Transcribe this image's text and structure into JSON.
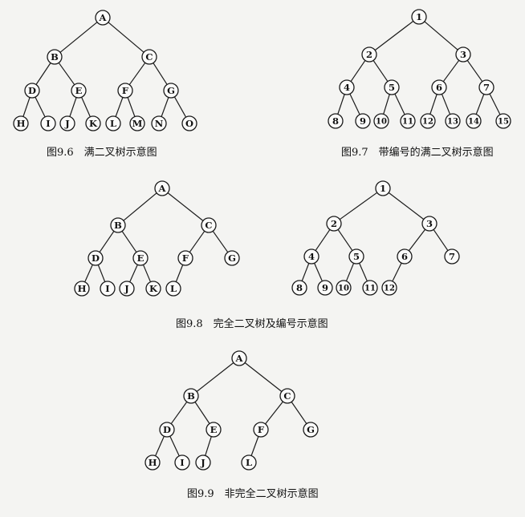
{
  "figures": [
    {
      "id": "fig-9-6",
      "caption": "图9.6　满二叉树示意图",
      "nodes": [
        {
          "id": "A",
          "label": "A",
          "parent": null
        },
        {
          "id": "B",
          "label": "B",
          "parent": "A"
        },
        {
          "id": "C",
          "label": "C",
          "parent": "A"
        },
        {
          "id": "D",
          "label": "D",
          "parent": "B"
        },
        {
          "id": "E",
          "label": "E",
          "parent": "B"
        },
        {
          "id": "F",
          "label": "F",
          "parent": "C"
        },
        {
          "id": "G",
          "label": "G",
          "parent": "C"
        },
        {
          "id": "H",
          "label": "H",
          "parent": "D"
        },
        {
          "id": "I",
          "label": "I",
          "parent": "D"
        },
        {
          "id": "J",
          "label": "J",
          "parent": "E"
        },
        {
          "id": "K",
          "label": "K",
          "parent": "E"
        },
        {
          "id": "L",
          "label": "L",
          "parent": "F"
        },
        {
          "id": "M",
          "label": "M",
          "parent": "F"
        },
        {
          "id": "N",
          "label": "N",
          "parent": "G"
        },
        {
          "id": "O",
          "label": "O",
          "parent": "G"
        }
      ]
    },
    {
      "id": "fig-9-7",
      "caption": "图9.7　带编号的满二叉树示意图",
      "nodes": [
        {
          "id": "1",
          "label": "1",
          "parent": null
        },
        {
          "id": "2",
          "label": "2",
          "parent": "1"
        },
        {
          "id": "3",
          "label": "3",
          "parent": "1"
        },
        {
          "id": "4",
          "label": "4",
          "parent": "2"
        },
        {
          "id": "5",
          "label": "5",
          "parent": "2"
        },
        {
          "id": "6",
          "label": "6",
          "parent": "3"
        },
        {
          "id": "7",
          "label": "7",
          "parent": "3"
        },
        {
          "id": "8",
          "label": "8",
          "parent": "4"
        },
        {
          "id": "9",
          "label": "9",
          "parent": "4"
        },
        {
          "id": "10",
          "label": "10",
          "parent": "5"
        },
        {
          "id": "11",
          "label": "11",
          "parent": "5"
        },
        {
          "id": "12",
          "label": "12",
          "parent": "6"
        },
        {
          "id": "13",
          "label": "13",
          "parent": "6"
        },
        {
          "id": "14",
          "label": "14",
          "parent": "7"
        },
        {
          "id": "15",
          "label": "15",
          "parent": "7"
        }
      ]
    },
    {
      "id": "fig-9-8a",
      "caption": "",
      "nodes": [
        {
          "id": "A",
          "label": "A",
          "parent": null
        },
        {
          "id": "B",
          "label": "B",
          "parent": "A"
        },
        {
          "id": "C",
          "label": "C",
          "parent": "A"
        },
        {
          "id": "D",
          "label": "D",
          "parent": "B"
        },
        {
          "id": "E",
          "label": "E",
          "parent": "B"
        },
        {
          "id": "F",
          "label": "F",
          "parent": "C"
        },
        {
          "id": "G",
          "label": "G",
          "parent": "C"
        },
        {
          "id": "H",
          "label": "H",
          "parent": "D"
        },
        {
          "id": "I",
          "label": "I",
          "parent": "D"
        },
        {
          "id": "J",
          "label": "J",
          "parent": "E"
        },
        {
          "id": "K",
          "label": "K",
          "parent": "E"
        },
        {
          "id": "L",
          "label": "L",
          "parent": "F"
        }
      ]
    },
    {
      "id": "fig-9-8b",
      "caption": "",
      "nodes": [
        {
          "id": "1",
          "label": "1",
          "parent": null
        },
        {
          "id": "2",
          "label": "2",
          "parent": "1"
        },
        {
          "id": "3",
          "label": "3",
          "parent": "1"
        },
        {
          "id": "4",
          "label": "4",
          "parent": "2"
        },
        {
          "id": "5",
          "label": "5",
          "parent": "2"
        },
        {
          "id": "6",
          "label": "6",
          "parent": "3"
        },
        {
          "id": "7",
          "label": "7",
          "parent": "3"
        },
        {
          "id": "8",
          "label": "8",
          "parent": "4"
        },
        {
          "id": "9",
          "label": "9",
          "parent": "4"
        },
        {
          "id": "10",
          "label": "10",
          "parent": "5"
        },
        {
          "id": "11",
          "label": "11",
          "parent": "5"
        },
        {
          "id": "12",
          "label": "12",
          "parent": "6"
        }
      ]
    },
    {
      "id": "fig-9-9",
      "caption": "图9.9　非完全二叉树示意图",
      "nodes": [
        {
          "id": "A",
          "label": "A",
          "parent": null
        },
        {
          "id": "B",
          "label": "B",
          "parent": "A"
        },
        {
          "id": "C",
          "label": "C",
          "parent": "A"
        },
        {
          "id": "D",
          "label": "D",
          "parent": "B"
        },
        {
          "id": "E",
          "label": "E",
          "parent": "B"
        },
        {
          "id": "F",
          "label": "F",
          "parent": "C"
        },
        {
          "id": "G",
          "label": "G",
          "parent": "C"
        },
        {
          "id": "H",
          "label": "H",
          "parent": "D"
        },
        {
          "id": "I",
          "label": "I",
          "parent": "D"
        },
        {
          "id": "J",
          "label": "J",
          "parent": "E"
        },
        {
          "id": "L",
          "label": "L",
          "parent": "F"
        }
      ]
    }
  ],
  "shared_caption": "图9.8　完全二叉树及编号示意图"
}
